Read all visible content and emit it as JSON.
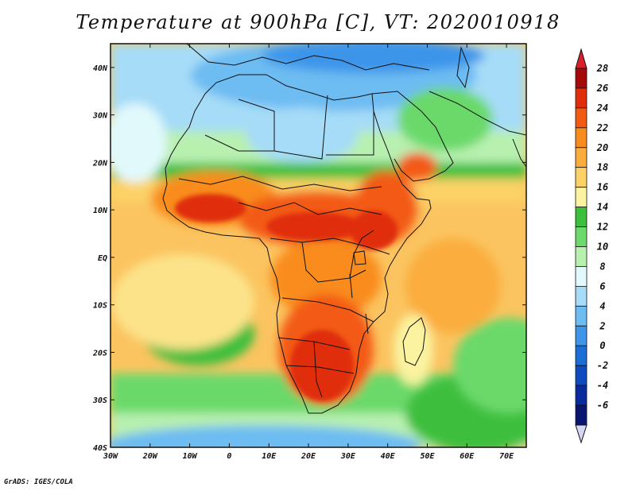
{
  "title": "Temperature at 900hPa [C], VT: 2020010918",
  "credit": "GrADS: IGES/COLA",
  "map": {
    "region": "Africa",
    "variable": "Temperature at 900hPa",
    "units": "C",
    "valid_time": "2020010918",
    "lon_range": [
      -30,
      75
    ],
    "lat_range": [
      -40,
      45
    ],
    "lon_ticks": [
      {
        "value": -30,
        "label": "30W"
      },
      {
        "value": -20,
        "label": "20W"
      },
      {
        "value": -10,
        "label": "10W"
      },
      {
        "value": 0,
        "label": "0"
      },
      {
        "value": 10,
        "label": "10E"
      },
      {
        "value": 20,
        "label": "20E"
      },
      {
        "value": 30,
        "label": "30E"
      },
      {
        "value": 40,
        "label": "40E"
      },
      {
        "value": 50,
        "label": "50E"
      },
      {
        "value": 60,
        "label": "60E"
      },
      {
        "value": 70,
        "label": "70E"
      }
    ],
    "lat_ticks": [
      {
        "value": 40,
        "label": "40N"
      },
      {
        "value": 30,
        "label": "30N"
      },
      {
        "value": 20,
        "label": "20N"
      },
      {
        "value": 10,
        "label": "10N"
      },
      {
        "value": 0,
        "label": "EQ"
      },
      {
        "value": -10,
        "label": "10S"
      },
      {
        "value": -20,
        "label": "20S"
      },
      {
        "value": -30,
        "label": "30S"
      },
      {
        "value": -40,
        "label": "40S"
      }
    ]
  },
  "colorbar": {
    "levels": [
      {
        "label": "28",
        "color": "#a50a0a"
      },
      {
        "label": "26",
        "color": "#e02d0c"
      },
      {
        "label": "24",
        "color": "#f35a14"
      },
      {
        "label": "22",
        "color": "#f98c1e"
      },
      {
        "label": "20",
        "color": "#fbad3c"
      },
      {
        "label": "18",
        "color": "#fcd266"
      },
      {
        "label": "16",
        "color": "#fbf3a0"
      },
      {
        "label": "14",
        "color": "#3cbf3c"
      },
      {
        "label": "12",
        "color": "#6bd96b"
      },
      {
        "label": "10",
        "color": "#b8f0b0"
      },
      {
        "label": "8",
        "color": "#e1f9fb"
      },
      {
        "label": "6",
        "color": "#a6dcf7"
      },
      {
        "label": "4",
        "color": "#6dbcf2"
      },
      {
        "label": "2",
        "color": "#3e95ea"
      },
      {
        "label": "0",
        "color": "#1a6ed6"
      },
      {
        "label": "-2",
        "color": "#0e4bc0"
      },
      {
        "label": "-4",
        "color": "#0a2b9e"
      },
      {
        "label": "-6",
        "color": "#0a1570"
      }
    ],
    "over_color": "#d8202a",
    "under_color": "#d6d6f5"
  },
  "colors": {
    "ocean_base": "#fbc460",
    "coastline": "#111111",
    "frame": "#111111"
  }
}
